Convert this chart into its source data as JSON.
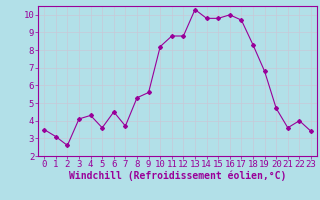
{
  "x": [
    0,
    1,
    2,
    3,
    4,
    5,
    6,
    7,
    8,
    9,
    10,
    11,
    12,
    13,
    14,
    15,
    16,
    17,
    18,
    19,
    20,
    21,
    22,
    23
  ],
  "y": [
    3.5,
    3.1,
    2.6,
    4.1,
    4.3,
    3.6,
    4.5,
    3.7,
    5.3,
    5.6,
    8.2,
    8.8,
    8.8,
    10.3,
    9.8,
    9.8,
    10.0,
    9.7,
    8.3,
    6.8,
    4.7,
    3.6,
    4.0,
    3.4
  ],
  "line_color": "#990099",
  "marker": "D",
  "marker_size": 2.0,
  "bg_color": "#b2e0e8",
  "grid_color": "#c8c8d8",
  "xlabel": "Windchill (Refroidissement éolien,°C)",
  "xlabel_fontsize": 7,
  "tick_fontsize": 6.5,
  "ylim": [
    2,
    10.5
  ],
  "xlim": [
    -0.5,
    23.5
  ],
  "yticks": [
    2,
    3,
    4,
    5,
    6,
    7,
    8,
    9,
    10
  ],
  "xticks": [
    0,
    1,
    2,
    3,
    4,
    5,
    6,
    7,
    8,
    9,
    10,
    11,
    12,
    13,
    14,
    15,
    16,
    17,
    18,
    19,
    20,
    21,
    22,
    23
  ],
  "spine_color": "#990099",
  "linewidth": 0.8
}
